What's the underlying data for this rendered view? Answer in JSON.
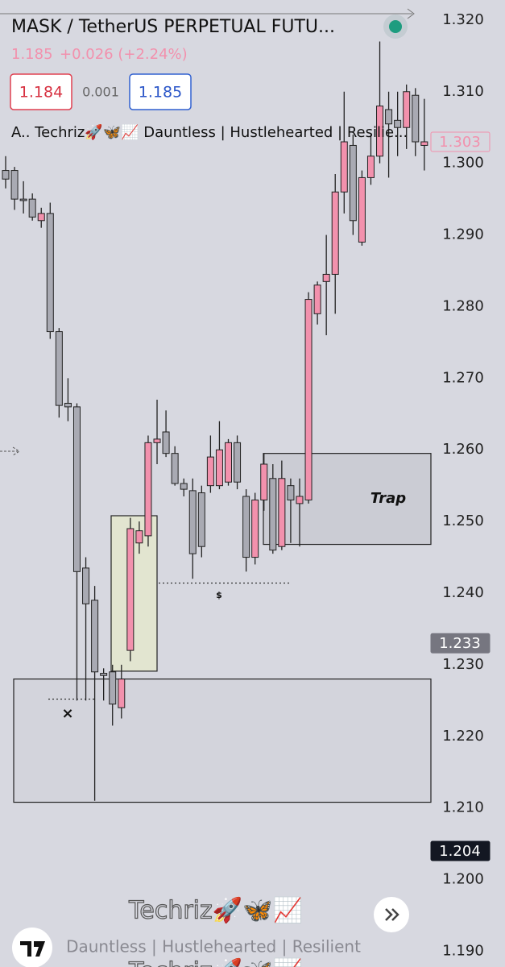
{
  "header": {
    "title": "MASK / TetherUS PERPETUAL FUTU...",
    "last_price": "1.185",
    "change": "+0.026 (+2.24%)",
    "sell": "1.184",
    "spread": "0.001",
    "buy": "1.185"
  },
  "indicator": "A.. Techriz🚀🦋📈 Dauntless | Hustlehearted | Resilie...",
  "watermark": {
    "name": "Techriz🚀🦋📈",
    "tagline": "Dauntless | Hustlehearted | Resilient",
    "name_repeat": "Techriz🚀🦋📈"
  },
  "chart_data": {
    "type": "candlestick",
    "up_color": "#f291ad",
    "down_color": "#a9aab3",
    "ylim": [
      1.1878,
      1.3228
    ],
    "yticks": [
      {
        "value": 1.19,
        "label": "1.190"
      },
      {
        "value": 1.2,
        "label": "1.200"
      },
      {
        "value": 1.21,
        "label": "1.210"
      },
      {
        "value": 1.22,
        "label": "1.220"
      },
      {
        "value": 1.23,
        "label": "1.230"
      },
      {
        "value": 1.24,
        "label": "1.240"
      },
      {
        "value": 1.25,
        "label": "1.250"
      },
      {
        "value": 1.26,
        "label": "1.260"
      },
      {
        "value": 1.27,
        "label": "1.270"
      },
      {
        "value": 1.28,
        "label": "1.280"
      },
      {
        "value": 1.29,
        "label": "1.290"
      },
      {
        "value": 1.3,
        "label": "1.300"
      },
      {
        "value": 1.31,
        "label": "1.310"
      },
      {
        "value": 1.32,
        "label": "1.320"
      }
    ],
    "open": [
      1.299,
      1.299,
      1.295,
      1.295,
      1.292,
      1.293,
      1.2765,
      1.2665,
      1.266,
      1.2435,
      1.239,
      1.2288,
      1.229,
      1.224,
      1.232,
      1.247,
      1.248,
      1.261,
      1.2625,
      1.2595,
      1.2553,
      1.2543,
      1.254,
      1.255,
      1.255,
      1.2555,
      1.261,
      1.2535,
      1.245,
      1.253,
      1.256,
      1.2465,
      1.255,
      1.2525,
      1.253,
      1.279,
      1.2835,
      1.2845,
      1.296,
      1.3025,
      1.289,
      1.298,
      1.301,
      1.3075,
      1.306,
      1.305,
      1.3095,
      1.3025
    ],
    "high": [
      1.301,
      1.2995,
      1.2975,
      1.2958,
      1.2938,
      1.2945,
      1.277,
      1.27,
      1.2665,
      1.245,
      1.241,
      1.2295,
      1.23,
      1.23,
      1.2505,
      1.25,
      1.262,
      1.267,
      1.2655,
      1.2605,
      1.256,
      1.256,
      1.255,
      1.262,
      1.264,
      1.2615,
      1.262,
      1.2545,
      1.254,
      1.2595,
      1.258,
      1.2585,
      1.256,
      1.256,
      1.282,
      1.2835,
      1.29,
      1.2985,
      1.31,
      1.304,
      1.299,
      1.304,
      1.317,
      1.31,
      1.31,
      1.311,
      1.3105,
      1.309
    ],
    "low": [
      1.2965,
      1.2935,
      1.293,
      1.292,
      1.291,
      1.2755,
      1.2645,
      1.264,
      1.225,
      1.225,
      1.211,
      1.225,
      1.2215,
      1.2225,
      1.2305,
      1.2455,
      1.2465,
      1.258,
      1.259,
      1.255,
      1.2535,
      1.242,
      1.245,
      1.254,
      1.2545,
      1.255,
      1.2545,
      1.243,
      1.244,
      1.2515,
      1.2455,
      1.246,
      1.247,
      1.2465,
      1.2525,
      1.2775,
      1.276,
      1.279,
      1.293,
      1.29,
      1.2885,
      1.297,
      1.3,
      1.298,
      1.301,
      1.302,
      1.301,
      1.299
    ],
    "close": [
      1.2978,
      1.295,
      1.2948,
      1.2925,
      1.293,
      1.2765,
      1.2662,
      1.266,
      1.243,
      1.2385,
      1.229,
      1.2285,
      1.2245,
      1.228,
      1.249,
      1.2487,
      1.261,
      1.2615,
      1.2595,
      1.2553,
      1.2545,
      1.2455,
      1.2465,
      1.259,
      1.26,
      1.261,
      1.2555,
      1.245,
      1.253,
      1.258,
      1.246,
      1.256,
      1.253,
      1.2535,
      1.281,
      1.283,
      1.2845,
      1.296,
      1.303,
      1.292,
      1.298,
      1.301,
      1.308,
      1.3055,
      1.305,
      1.31,
      1.303,
      1.303
    ],
    "price_labels": [
      {
        "value": 1.303,
        "label": "1.303"
      },
      {
        "value": 1.233,
        "label": "1.233"
      },
      {
        "value": 1.204,
        "label": "1.204"
      }
    ],
    "zones": [
      {
        "top": 1.2508,
        "bottom": 1.2291,
        "color": "#e2e5d0"
      },
      {
        "top": 1.228,
        "bottom": 1.2108,
        "color": "#d3d4dc"
      },
      {
        "top": 1.2595,
        "bottom": 1.2468,
        "color": "#cbccd4",
        "label": "Trap"
      }
    ],
    "levels": [
      1.2252,
      1.2414
    ],
    "annotations": [
      "×",
      "$"
    ]
  }
}
